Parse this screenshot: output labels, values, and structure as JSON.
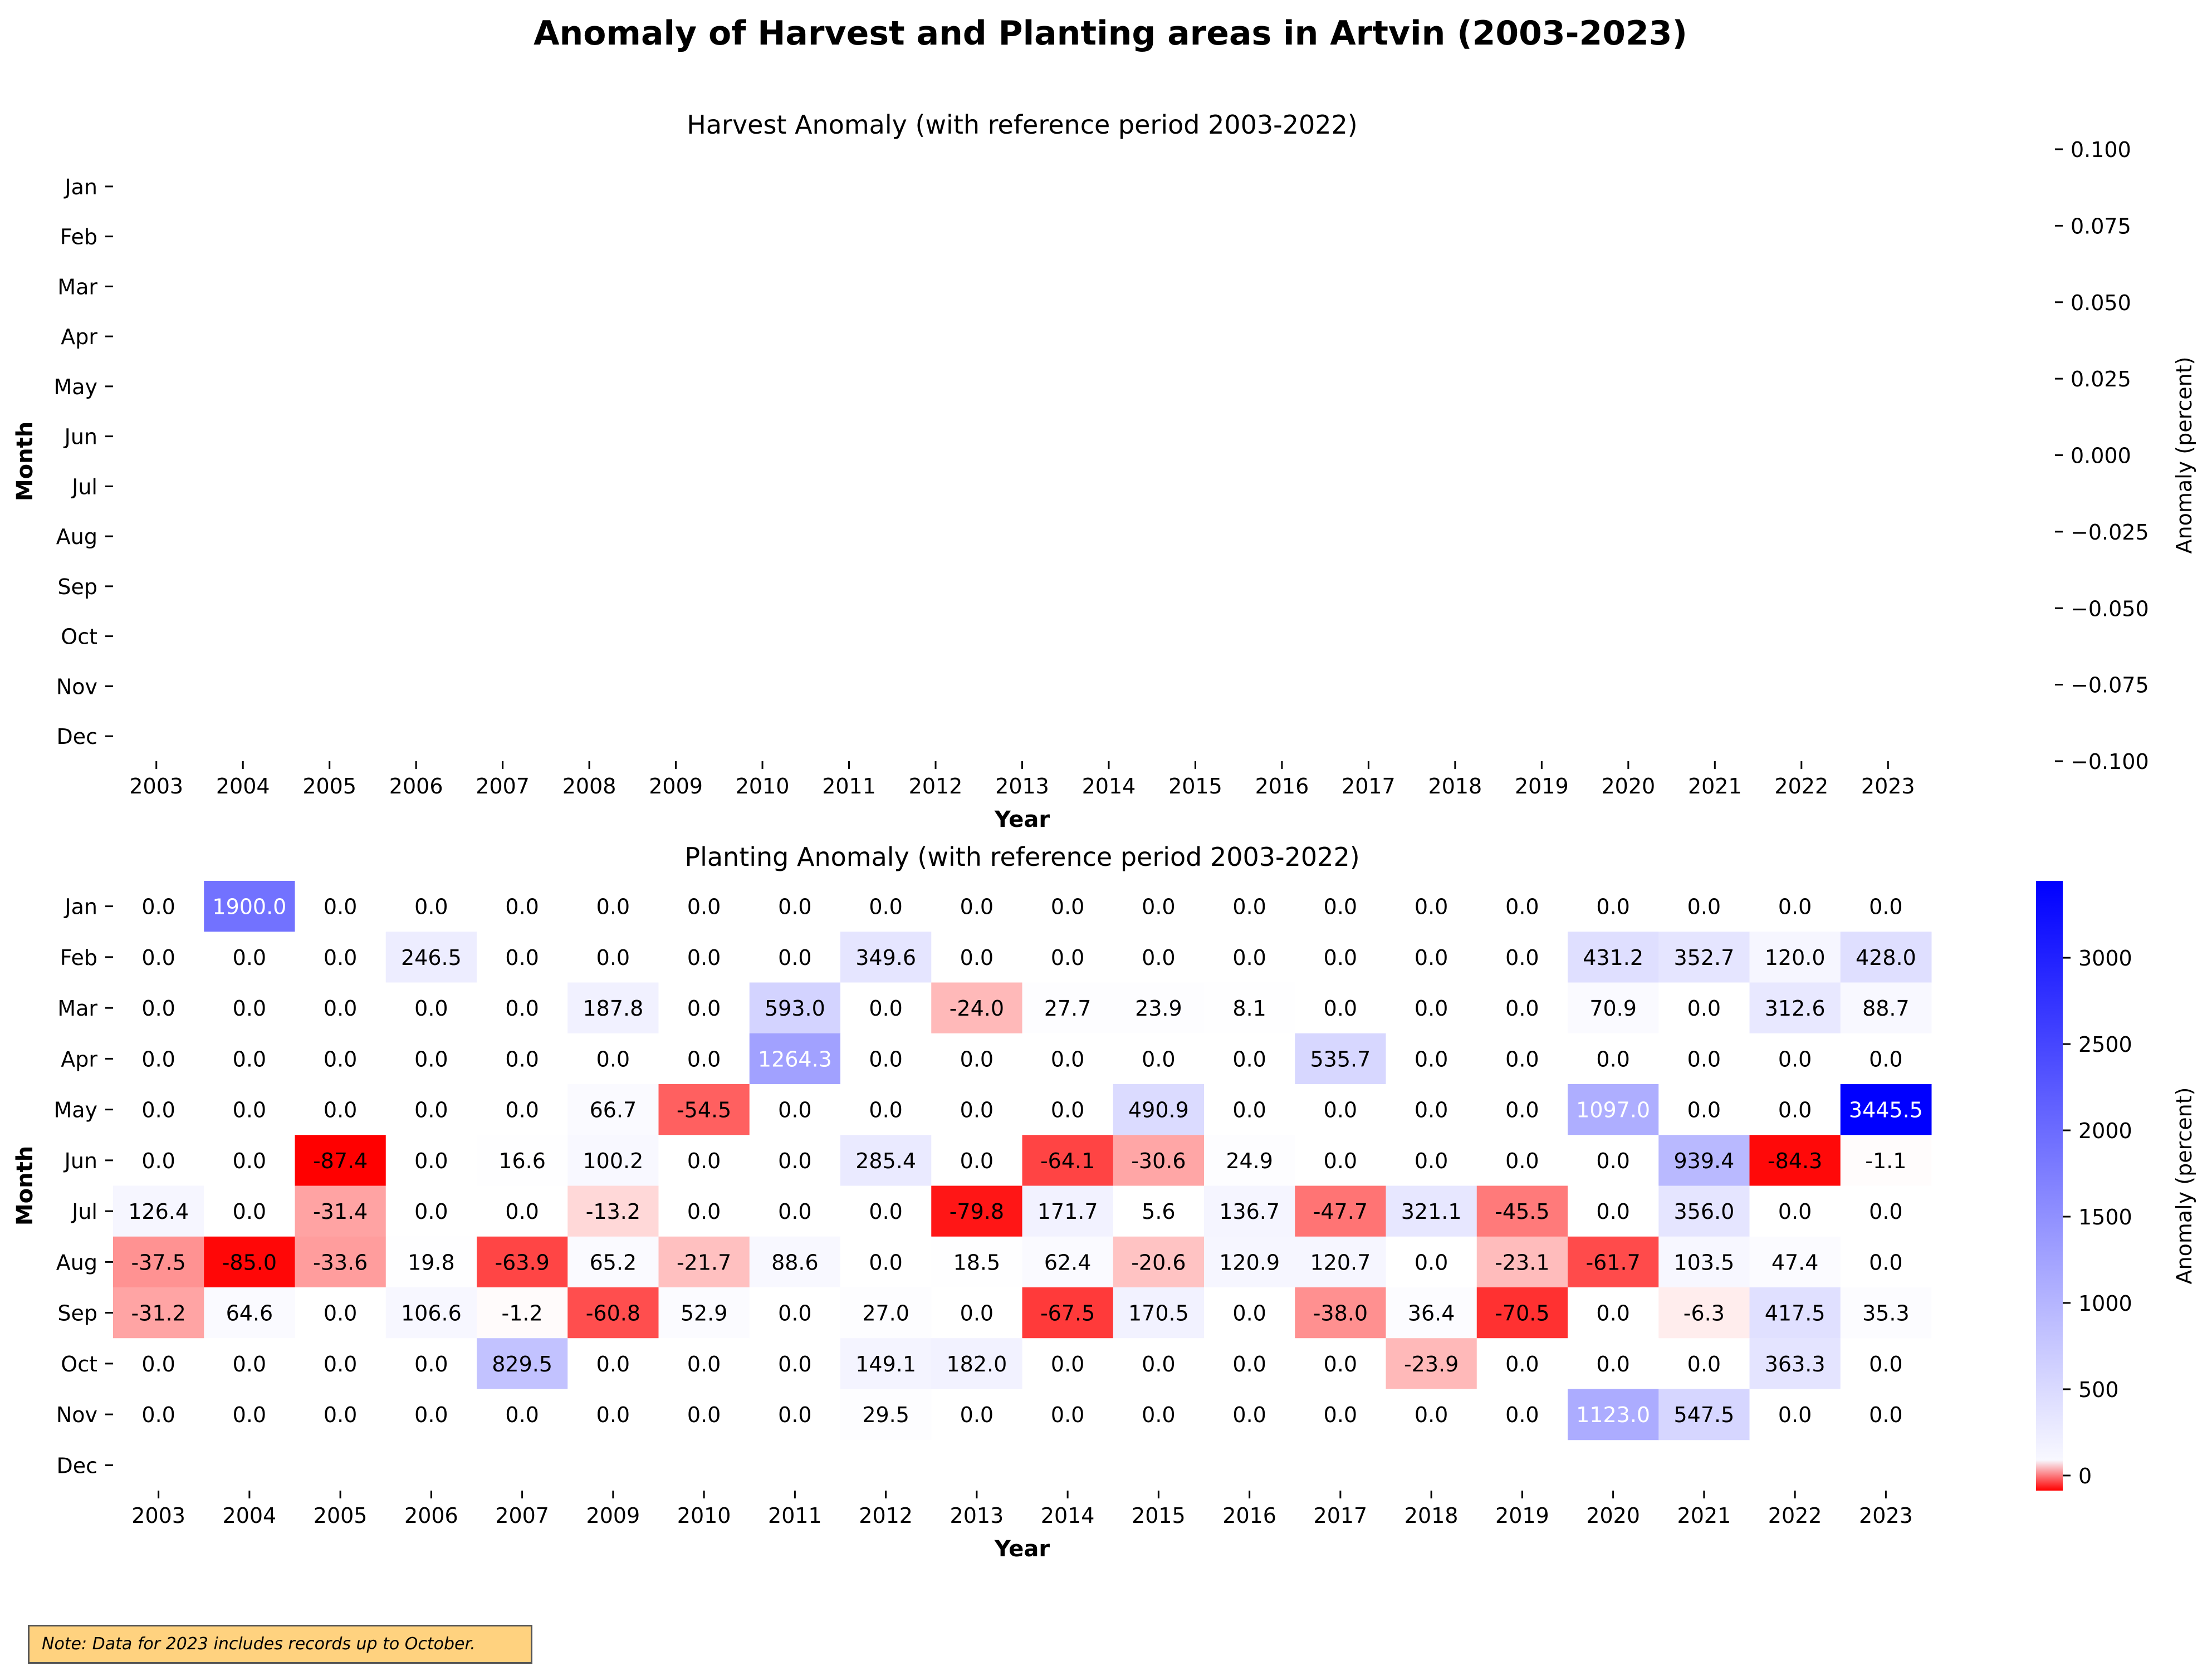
{
  "title": "Anomaly of Harvest and Planting areas in Artvin (2003-2023)",
  "note": "Note: Data for 2023 includes records up to October.",
  "colors": {
    "positive": "#0000ff",
    "negative": "#ff0000",
    "neutral": "#ffffff"
  },
  "chart_data": [
    {
      "type": "heatmap",
      "title": "Harvest Anomaly (with reference period 2003-2022)",
      "xlabel": "Year",
      "ylabel": "Month",
      "x_ticks": [
        "2003",
        "2004",
        "2005",
        "2006",
        "2007",
        "2008",
        "2009",
        "2010",
        "2011",
        "2012",
        "2013",
        "2014",
        "2015",
        "2016",
        "2017",
        "2018",
        "2019",
        "2020",
        "2021",
        "2022",
        "2023"
      ],
      "y_ticks": [
        "Jan",
        "Feb",
        "Mar",
        "Apr",
        "May",
        "Jun",
        "Jul",
        "Aug",
        "Sep",
        "Oct",
        "Nov",
        "Dec"
      ],
      "values": [],
      "colorbar": {
        "label": "Anomaly (percent)",
        "ticks": [
          "0.100",
          "0.075",
          "0.050",
          "0.025",
          "0.000",
          "−0.025",
          "−0.050",
          "−0.075",
          "−0.100"
        ],
        "range": [
          -0.1,
          0.1
        ]
      }
    },
    {
      "type": "heatmap",
      "title": "Planting Anomaly (with reference period 2003-2022)",
      "xlabel": "Year",
      "ylabel": "Month",
      "x_ticks": [
        "2003",
        "2004",
        "2005",
        "2006",
        "2007",
        "2009",
        "2010",
        "2011",
        "2012",
        "2013",
        "2014",
        "2015",
        "2016",
        "2017",
        "2018",
        "2019",
        "2020",
        "2021",
        "2022",
        "2023"
      ],
      "y_ticks": [
        "Jan",
        "Feb",
        "Mar",
        "Apr",
        "May",
        "Jun",
        "Jul",
        "Aug",
        "Sep",
        "Oct",
        "Nov",
        "Dec"
      ],
      "values": [
        [
          "0.0",
          "1900.0",
          "0.0",
          "0.0",
          "0.0",
          "0.0",
          "0.0",
          "0.0",
          "0.0",
          "0.0",
          "0.0",
          "0.0",
          "0.0",
          "0.0",
          "0.0",
          "0.0",
          "0.0",
          "0.0",
          "0.0",
          "0.0"
        ],
        [
          "0.0",
          "0.0",
          "0.0",
          "246.5",
          "0.0",
          "0.0",
          "0.0",
          "0.0",
          "349.6",
          "0.0",
          "0.0",
          "0.0",
          "0.0",
          "0.0",
          "0.0",
          "0.0",
          "431.2",
          "352.7",
          "120.0",
          "428.0"
        ],
        [
          "0.0",
          "0.0",
          "0.0",
          "0.0",
          "0.0",
          "187.8",
          "0.0",
          "593.0",
          "0.0",
          "-24.0",
          "27.7",
          "23.9",
          "8.1",
          "0.0",
          "0.0",
          "0.0",
          "70.9",
          "0.0",
          "312.6",
          "88.7"
        ],
        [
          "0.0",
          "0.0",
          "0.0",
          "0.0",
          "0.0",
          "0.0",
          "0.0",
          "1264.3",
          "0.0",
          "0.0",
          "0.0",
          "0.0",
          "0.0",
          "535.7",
          "0.0",
          "0.0",
          "0.0",
          "0.0",
          "0.0",
          "0.0"
        ],
        [
          "0.0",
          "0.0",
          "0.0",
          "0.0",
          "0.0",
          "66.7",
          "-54.5",
          "0.0",
          "0.0",
          "0.0",
          "0.0",
          "490.9",
          "0.0",
          "0.0",
          "0.0",
          "0.0",
          "1097.0",
          "0.0",
          "0.0",
          "3445.5"
        ],
        [
          "0.0",
          "0.0",
          "-87.4",
          "0.0",
          "16.6",
          "100.2",
          "0.0",
          "0.0",
          "285.4",
          "0.0",
          "-64.1",
          "-30.6",
          "24.9",
          "0.0",
          "0.0",
          "0.0",
          "0.0",
          "939.4",
          "-84.3",
          "-1.1"
        ],
        [
          "126.4",
          "0.0",
          "-31.4",
          "0.0",
          "0.0",
          "-13.2",
          "0.0",
          "0.0",
          "0.0",
          "-79.8",
          "171.7",
          "5.6",
          "136.7",
          "-47.7",
          "321.1",
          "-45.5",
          "0.0",
          "356.0",
          "0.0",
          "0.0"
        ],
        [
          "-37.5",
          "-85.0",
          "-33.6",
          "19.8",
          "-63.9",
          "65.2",
          "-21.7",
          "88.6",
          "0.0",
          "18.5",
          "62.4",
          "-20.6",
          "120.9",
          "120.7",
          "0.0",
          "-23.1",
          "-61.7",
          "103.5",
          "47.4",
          "0.0"
        ],
        [
          "-31.2",
          "64.6",
          "0.0",
          "106.6",
          "-1.2",
          "-60.8",
          "52.9",
          "0.0",
          "27.0",
          "0.0",
          "-67.5",
          "170.5",
          "0.0",
          "-38.0",
          "36.4",
          "-70.5",
          "0.0",
          "-6.3",
          "417.5",
          "35.3"
        ],
        [
          "0.0",
          "0.0",
          "0.0",
          "0.0",
          "829.5",
          "0.0",
          "0.0",
          "0.0",
          "149.1",
          "182.0",
          "0.0",
          "0.0",
          "0.0",
          "0.0",
          "-23.9",
          "0.0",
          "0.0",
          "0.0",
          "363.3",
          "0.0"
        ],
        [
          "0.0",
          "0.0",
          "0.0",
          "0.0",
          "0.0",
          "0.0",
          "0.0",
          "0.0",
          "29.5",
          "0.0",
          "0.0",
          "0.0",
          "0.0",
          "0.0",
          "0.0",
          "0.0",
          "1123.0",
          "547.5",
          "0.0",
          "0.0"
        ],
        [
          "",
          "",
          "",
          "",
          "",
          "",
          "",
          "",
          "",
          "",
          "",
          "",
          "",
          "",
          "",
          "",
          "",
          "",
          "",
          ""
        ]
      ],
      "colorbar": {
        "label": "Anomaly (percent)",
        "ticks": [
          "3000",
          "2500",
          "2000",
          "1500",
          "1000",
          "500",
          "0"
        ],
        "range": [
          -87.4,
          3445.5
        ]
      }
    }
  ]
}
